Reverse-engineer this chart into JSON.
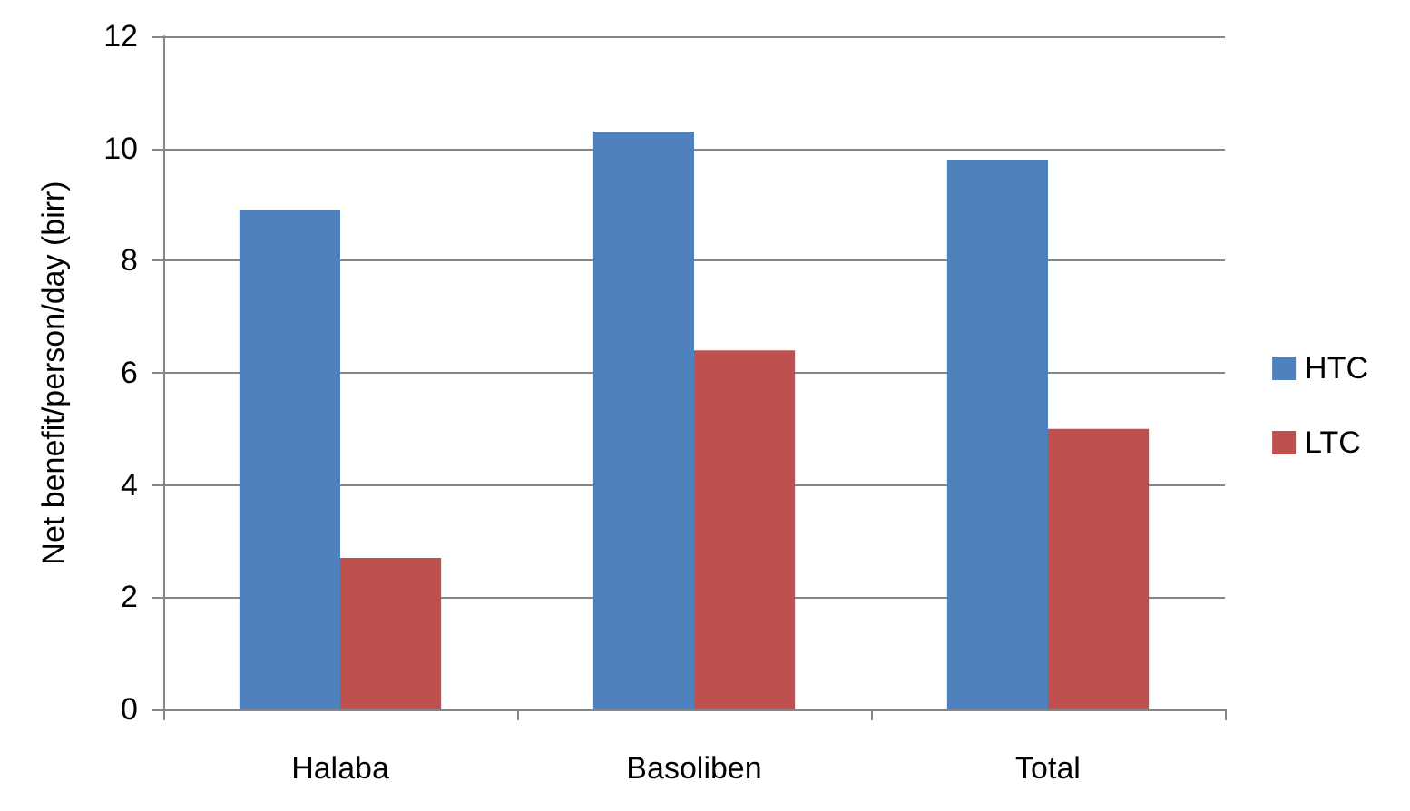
{
  "chart_data": {
    "type": "bar",
    "ylabel": "Net benefit/person/day (birr)",
    "categories": [
      "Halaba",
      "Basoliben",
      "Total"
    ],
    "series": [
      {
        "name": "HTC",
        "color": "#4f81bd",
        "values": [
          8.9,
          10.3,
          9.8
        ]
      },
      {
        "name": "LTC",
        "color": "#c0504d",
        "values": [
          2.7,
          6.4,
          5.0
        ]
      }
    ],
    "ylim": [
      0,
      12
    ],
    "yticks": [
      0,
      2,
      4,
      6,
      8,
      10,
      12
    ],
    "grid": "y",
    "legend": "right"
  }
}
